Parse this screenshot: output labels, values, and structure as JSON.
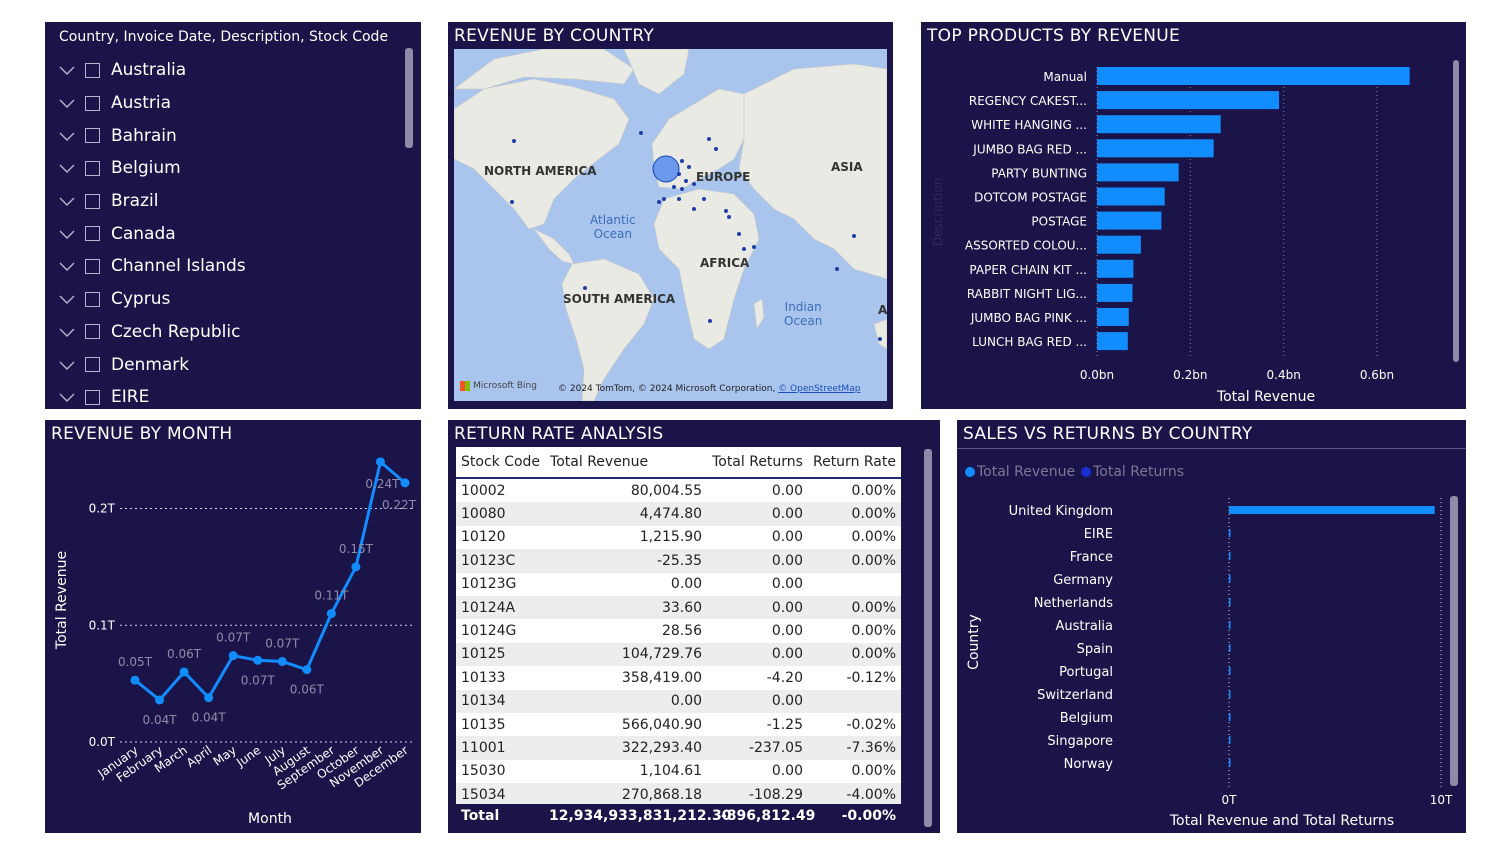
{
  "slicer": {
    "header": "Country, Invoice Date, Description, Stock Code",
    "items": [
      "Australia",
      "Austria",
      "Bahrain",
      "Belgium",
      "Brazil",
      "Canada",
      "Channel Islands",
      "Cyprus",
      "Czech Republic",
      "Denmark",
      "EIRE"
    ]
  },
  "map": {
    "title": "REVENUE BY COUNTRY",
    "continents": {
      "na": "NORTH AMERICA",
      "eu": "EUROPE",
      "asia": "ASIA",
      "af": "AFRICA",
      "sa": "SOUTH AMERICA",
      "a": "A"
    },
    "oceans": {
      "atlantic": "Atlantic\nOcean",
      "indian": "Indian\nOcean"
    },
    "logo": "Microsoft Bing",
    "credit": "© 2024 TomTom, © 2024 Microsoft Corporation,",
    "credit_link": "© OpenStreetMap"
  },
  "top_products": {
    "title": "TOP PRODUCTS BY REVENUE",
    "chart_data": {
      "type": "bar",
      "orientation": "horizontal",
      "categories": [
        "Manual",
        "REGENCY CAKEST...",
        "WHITE HANGING ...",
        "JUMBO BAG RED ...",
        "PARTY BUNTING",
        "DOTCOM POSTAGE",
        "POSTAGE",
        "ASSORTED COLOU...",
        "PAPER CHAIN KIT ...",
        "RABBIT NIGHT LIG...",
        "JUMBO BAG PINK ...",
        "LUNCH BAG RED ..."
      ],
      "values": [
        0.67,
        0.39,
        0.265,
        0.25,
        0.175,
        0.145,
        0.138,
        0.094,
        0.078,
        0.076,
        0.068,
        0.066
      ],
      "xlabel": "Total Revenue",
      "ylabel": "Description",
      "xticks": [
        "0.0bn",
        "0.2bn",
        "0.4bn",
        "0.6bn"
      ],
      "xlim": [
        0,
        0.72
      ],
      "grid": true,
      "color": "#118dff"
    }
  },
  "revenue_month": {
    "title": "REVENUE BY MONTH",
    "chart_data": {
      "type": "line",
      "categories": [
        "January",
        "February",
        "March",
        "April",
        "May",
        "June",
        "July",
        "August",
        "September",
        "October",
        "November",
        "December"
      ],
      "values": [
        0.053,
        0.036,
        0.06,
        0.038,
        0.074,
        0.07,
        0.069,
        0.062,
        0.11,
        0.15,
        0.24,
        0.222
      ],
      "labels": [
        "0.05T",
        "0.04T",
        "0.06T",
        "0.04T",
        "0.07T",
        "0.07T",
        "0.07T",
        "0.06T",
        "0.11T",
        "0.15T",
        "0.24T",
        "0.22T"
      ],
      "xlabel": "Month",
      "ylabel": "Total Revenue",
      "yticks": [
        "0.0T",
        "0.1T",
        "0.2T"
      ],
      "ylim": [
        0,
        0.245
      ],
      "grid": true,
      "color": "#118dff"
    }
  },
  "returns_table": {
    "title": "RETURN RATE ANALYSIS",
    "columns": [
      "Stock Code",
      "Total Revenue",
      "Total Returns",
      "Return Rate"
    ],
    "rows": [
      [
        "10002",
        "80,004.55",
        "0.00",
        "0.00%"
      ],
      [
        "10080",
        "4,474.80",
        "0.00",
        "0.00%"
      ],
      [
        "10120",
        "1,215.90",
        "0.00",
        "0.00%"
      ],
      [
        "10123C",
        "-25.35",
        "0.00",
        "0.00%"
      ],
      [
        "10123G",
        "0.00",
        "0.00",
        ""
      ],
      [
        "10124A",
        "33.60",
        "0.00",
        "0.00%"
      ],
      [
        "10124G",
        "28.56",
        "0.00",
        "0.00%"
      ],
      [
        "10125",
        "104,729.76",
        "0.00",
        "0.00%"
      ],
      [
        "10133",
        "358,419.00",
        "-4.20",
        "-0.12%"
      ],
      [
        "10134",
        "0.00",
        "0.00",
        ""
      ],
      [
        "10135",
        "566,040.90",
        "-1.25",
        "-0.02%"
      ],
      [
        "11001",
        "322,293.40",
        "-237.05",
        "-7.36%"
      ],
      [
        "15030",
        "1,104.61",
        "0.00",
        "0.00%"
      ],
      [
        "15034",
        "270,868.18",
        "-108.29",
        "-4.00%"
      ]
    ],
    "total": [
      "Total",
      "12,934,933,831,212.30",
      "-896,812.49",
      "-0.00%"
    ]
  },
  "sales_returns": {
    "title": "SALES VS RETURNS BY COUNTRY",
    "legend": [
      "Total Revenue",
      "Total Returns"
    ],
    "chart_data": {
      "type": "bar",
      "orientation": "horizontal",
      "categories": [
        "United Kingdom",
        "EIRE",
        "France",
        "Germany",
        "Netherlands",
        "Australia",
        "Spain",
        "Portugal",
        "Switzerland",
        "Belgium",
        "Singapore",
        "Norway"
      ],
      "series": [
        {
          "name": "Total Revenue",
          "values": [
            9.7,
            0.06,
            0.05,
            0.05,
            0.05,
            0.04,
            0.03,
            0.02,
            0.02,
            0.02,
            0.02,
            0.02
          ]
        },
        {
          "name": "Total Returns",
          "values": [
            0,
            0,
            0,
            0,
            0,
            0,
            0,
            0,
            0,
            0,
            0,
            0
          ]
        }
      ],
      "xlabel": "Total Revenue and Total Returns",
      "ylabel": "Country",
      "xticks": [
        "0T",
        "10T"
      ],
      "xlim": [
        0,
        10
      ],
      "grid": true,
      "colors": [
        "#118dff",
        "#1a2fcf"
      ]
    }
  }
}
